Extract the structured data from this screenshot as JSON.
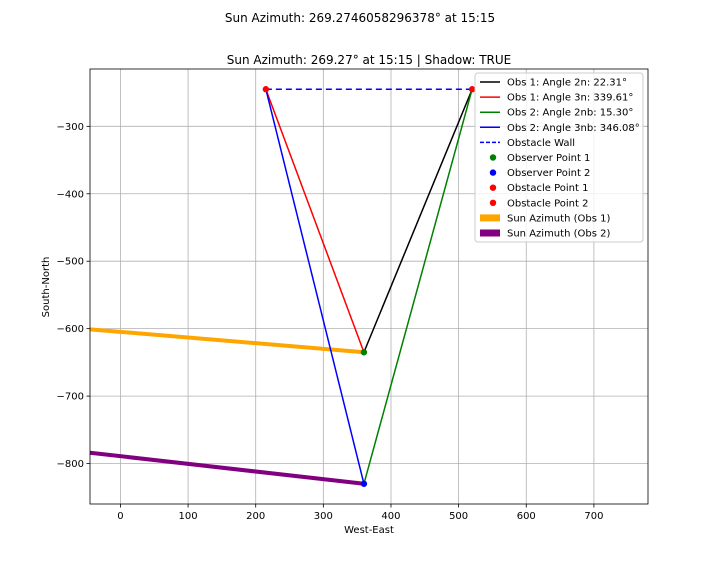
{
  "figure": {
    "suptitle": "Sun Azimuth: 269.2746058296378° at 15:15"
  },
  "chart_data": {
    "type": "line",
    "title": "Sun Azimuth: 269.27° at 15:15 | Shadow: TRUE",
    "xlabel": "West-East",
    "ylabel": "South-North",
    "xlim": [
      -45,
      780
    ],
    "ylim": [
      -860,
      -215
    ],
    "xticks": [
      0,
      100,
      200,
      300,
      400,
      500,
      600,
      700
    ],
    "yticks": [
      -300,
      -400,
      -500,
      -600,
      -700,
      -800
    ],
    "grid": true,
    "legend_position": "top-right",
    "series": [
      {
        "name": "Obs 1: Angle 2n: 22.31°",
        "kind": "line",
        "color": "#000000",
        "width": 1.5,
        "dash": "",
        "x": [
          360,
          520
        ],
        "y": [
          -635,
          -245
        ]
      },
      {
        "name": "Obs 1: Angle 3n: 339.61°",
        "kind": "line",
        "color": "#ff0000",
        "width": 1.5,
        "dash": "",
        "x": [
          360,
          215
        ],
        "y": [
          -635,
          -245
        ]
      },
      {
        "name": "Obs 2: Angle 2nb: 15.30°",
        "kind": "line",
        "color": "#008000",
        "width": 1.5,
        "dash": "",
        "x": [
          360,
          520
        ],
        "y": [
          -830,
          -245
        ]
      },
      {
        "name": "Obs 2: Angle 3nb: 346.08°",
        "kind": "line",
        "color": "#0000ff",
        "width": 1.5,
        "dash": "",
        "x": [
          360,
          215
        ],
        "y": [
          -830,
          -245
        ]
      },
      {
        "name": "Obstacle Wall",
        "kind": "line",
        "color": "#0000ff",
        "width": 1.5,
        "dash": "6,4",
        "x": [
          215,
          520
        ],
        "y": [
          -245,
          -245
        ]
      },
      {
        "name": "Observer Point 1",
        "kind": "point",
        "color": "#008000",
        "x": [
          360
        ],
        "y": [
          -635
        ]
      },
      {
        "name": "Observer Point 2",
        "kind": "point",
        "color": "#0000ff",
        "x": [
          360
        ],
        "y": [
          -830
        ]
      },
      {
        "name": "Obstacle Point 1",
        "kind": "point",
        "color": "#ff0000",
        "x": [
          215
        ],
        "y": [
          -245
        ]
      },
      {
        "name": "Obstacle Point 2",
        "kind": "point",
        "color": "#ff0000",
        "x": [
          520
        ],
        "y": [
          -245
        ]
      },
      {
        "name": "Sun Azimuth (Obs 1)",
        "kind": "thick",
        "color": "#ffa500",
        "width": 4,
        "dash": "",
        "x": [
          -45,
          360
        ],
        "y": [
          -601,
          -635
        ]
      },
      {
        "name": "Sun Azimuth (Obs 2)",
        "kind": "thick",
        "color": "#800080",
        "width": 4,
        "dash": "",
        "x": [
          -45,
          360
        ],
        "y": [
          -784,
          -830
        ]
      }
    ],
    "draw_order": [
      9,
      10,
      0,
      1,
      2,
      3,
      4,
      5,
      6,
      7,
      8
    ]
  }
}
